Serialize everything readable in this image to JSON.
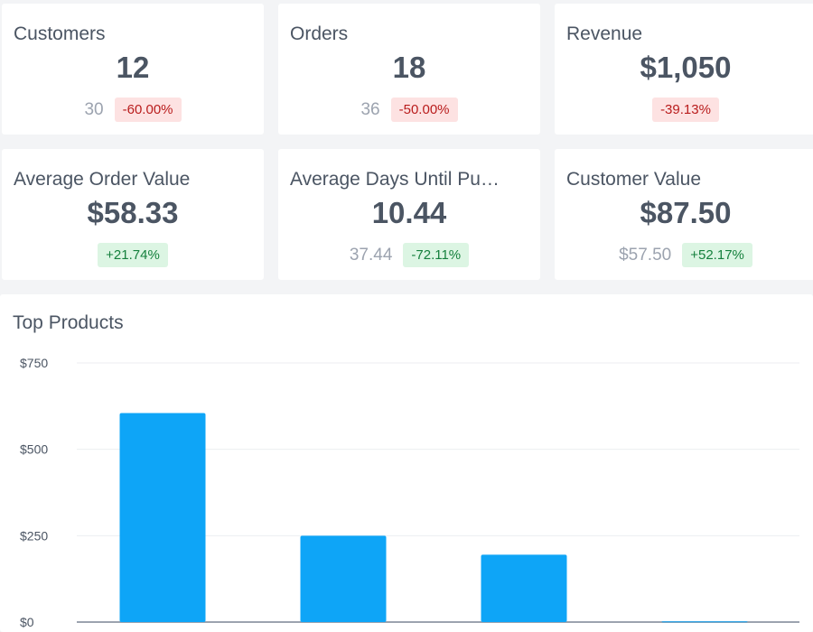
{
  "stats": [
    {
      "title": "Customers",
      "value": "12",
      "previous": "30",
      "change": "-60.00%",
      "trend": "negative"
    },
    {
      "title": "Orders",
      "value": "18",
      "previous": "36",
      "change": "-50.00%",
      "trend": "negative"
    },
    {
      "title": "Revenue",
      "value": "$1,050",
      "previous": "",
      "change": "-39.13%",
      "trend": "negative"
    },
    {
      "title": "Average Order Value",
      "value": "$58.33",
      "previous": "",
      "change": "+21.74%",
      "trend": "positive"
    },
    {
      "title": "Average Days Until Pu…",
      "value": "10.44",
      "previous": "37.44",
      "change": "-72.11%",
      "trend": "positive"
    },
    {
      "title": "Customer Value",
      "value": "$87.50",
      "previous": "$57.50",
      "change": "+52.17%",
      "trend": "positive"
    }
  ],
  "chart_panel": {
    "title": "Top Products"
  },
  "colors": {
    "bar": "#0ea5f7",
    "negative_bg": "#fde2e2",
    "positive_bg": "#dcf5e3"
  },
  "chart_data": {
    "type": "bar",
    "title": "Top Products",
    "categories": [
      "",
      "",
      "",
      ""
    ],
    "values": [
      605,
      250,
      195,
      2
    ],
    "ylim": [
      0,
      750
    ],
    "yticks": [
      0,
      250,
      500,
      750
    ],
    "ytick_labels": [
      "$0",
      "$250",
      "$500",
      "$750"
    ],
    "grid": true
  }
}
